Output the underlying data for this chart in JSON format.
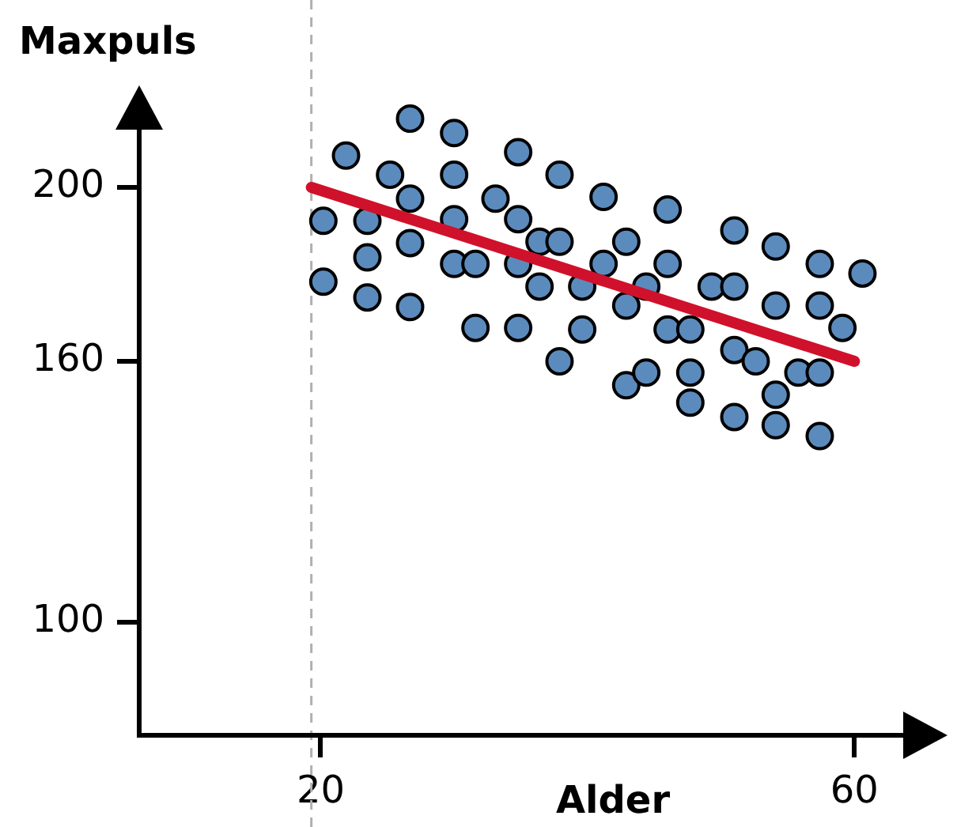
{
  "chart_data": {
    "type": "scatter",
    "xlabel": "Alder",
    "ylabel": "Maxpuls",
    "xlim": [
      6.4,
      66.5
    ],
    "xticks": [
      20,
      60
    ],
    "ylim": [
      74,
      222
    ],
    "yticks": [
      100,
      160,
      200
    ],
    "ref_lines": [
      {
        "axis": "x",
        "value": 19.3,
        "color": "#b0b0b0",
        "line_style": "dashed"
      }
    ],
    "series": [
      {
        "marker": "circle",
        "color": "#5b8bbd",
        "x": [
          20.2,
          20.2,
          21.9,
          23.5,
          23.5,
          23.5,
          25.2,
          26.7,
          26.7,
          26.7,
          26.7,
          30.0,
          30.0,
          30.0,
          30.0,
          31.6,
          31.6,
          33.1,
          34.8,
          34.8,
          34.8,
          34.8,
          36.4,
          36.4,
          37.9,
          37.9,
          37.9,
          39.6,
          39.6,
          41.2,
          41.2,
          42.9,
          42.9,
          42.9,
          44.4,
          44.4,
          46.0,
          46.0,
          46.0,
          47.7,
          47.7,
          47.7,
          49.3,
          51.0,
          51.0,
          51.0,
          51.0,
          52.6,
          54.1,
          54.1,
          54.1,
          54.1,
          55.8,
          57.4,
          57.4,
          57.4,
          57.4,
          59.1,
          60.6
        ],
        "values": [
          178.3,
          192.3,
          207.3,
          192.3,
          183.9,
          174.7,
          202.9,
          215.8,
          197.4,
          187.2,
          172.5,
          212.5,
          202.9,
          192.7,
          182.4,
          182.4,
          167.7,
          197.4,
          208.1,
          192.7,
          182.4,
          167.7,
          187.5,
          177.2,
          202.9,
          187.5,
          160,
          177.2,
          167.3,
          197.8,
          182.4,
          187.5,
          172.8,
          154.5,
          177.2,
          157.4,
          194.9,
          182.4,
          167.3,
          167.3,
          157.4,
          150.5,
          177.2,
          190.1,
          177.2,
          162.6,
          147.2,
          160,
          186.4,
          172.8,
          152.3,
          145.3,
          157.4,
          182.4,
          172.8,
          157.4,
          142.8,
          167.7,
          180.2
        ]
      },
      {
        "type": "line",
        "color": "#d0112b",
        "x": [
          19.3,
          60
        ],
        "values": [
          200,
          160
        ]
      }
    ]
  }
}
